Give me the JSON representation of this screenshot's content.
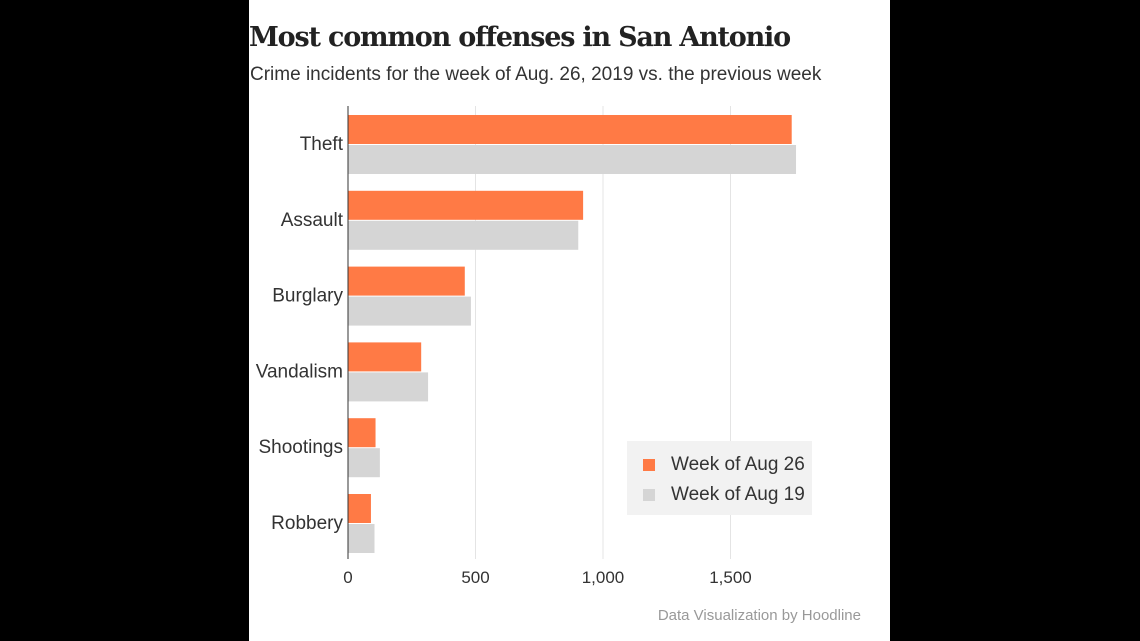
{
  "chart_data": {
    "type": "bar",
    "orientation": "horizontal",
    "title": "Most common offenses in San Antonio",
    "subtitle": "Crime incidents for the week of Aug. 26, 2019 vs. the previous week",
    "categories": [
      "Theft",
      "Assault",
      "Burglary",
      "Vandalism",
      "Shootings",
      "Robbery"
    ],
    "series": [
      {
        "name": "Week of Aug 26",
        "color": "#ff7a45",
        "values": [
          1740,
          922,
          458,
          287,
          108,
          90
        ]
      },
      {
        "name": "Week of Aug 19",
        "color": "#d5d5d5",
        "values": [
          1757,
          903,
          482,
          314,
          125,
          104
        ]
      }
    ],
    "xlim": [
      0,
      1800
    ],
    "x_ticks": [
      0,
      500,
      1000,
      1500
    ],
    "x_tick_labels": [
      "0",
      "500",
      "1,000",
      "1,500"
    ],
    "xlabel": "",
    "ylabel": "",
    "grid": true,
    "legend_position": "bottom-right",
    "credit": "Data Visualization by Hoodline"
  }
}
